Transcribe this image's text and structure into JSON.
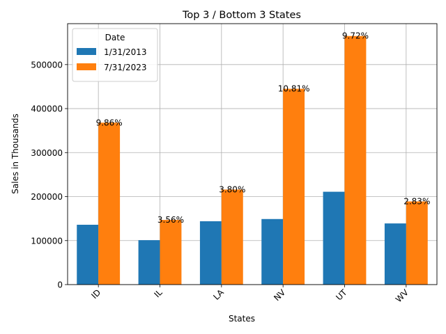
{
  "chart_data": {
    "type": "bar",
    "title": "Top 3 / Bottom 3 States",
    "xlabel": "States",
    "ylabel": "Sales in Thousands",
    "categories": [
      "ID",
      "IL",
      "LA",
      "NV",
      "UT",
      "WV"
    ],
    "series": [
      {
        "name": "1/31/2013",
        "color": "#1f77b4",
        "values": [
          136000,
          101000,
          144000,
          149000,
          211000,
          139000
        ]
      },
      {
        "name": "7/31/2023",
        "color": "#ff7f0e",
        "values": [
          368000,
          147000,
          216000,
          445000,
          565000,
          189000
        ]
      }
    ],
    "annotations": [
      "9.86%",
      "3.56%",
      "3.80%",
      "10.81%",
      "9.72%",
      "2.83%"
    ],
    "ylim": [
      0,
      593000
    ],
    "yticks": [
      0,
      100000,
      200000,
      300000,
      400000,
      500000
    ],
    "grid": true,
    "legend": {
      "title": "Date",
      "placement": "top-left"
    }
  }
}
